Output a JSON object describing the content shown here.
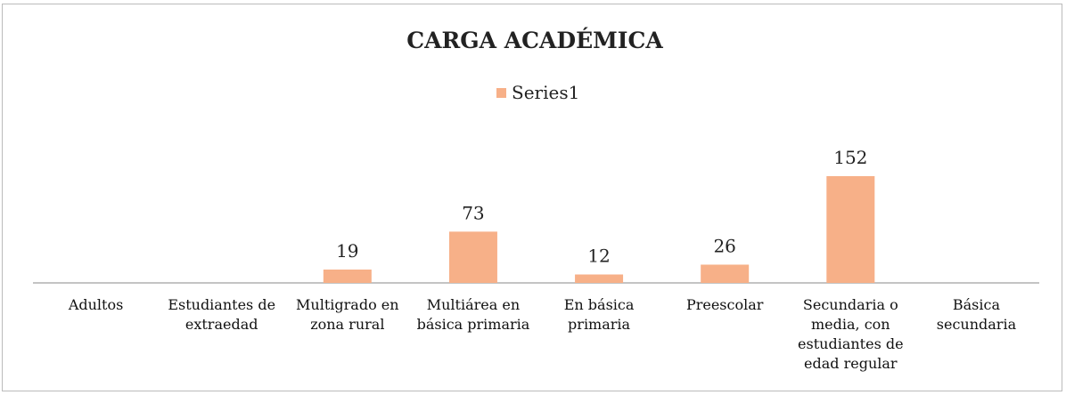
{
  "chart_data": {
    "type": "bar",
    "title": "CARGA ACADÉMICA",
    "categories": [
      "Adultos",
      "Estudiantes de extraedad",
      "Multigrado en zona rural",
      "Multiárea en básica primaria",
      "En básica primaria",
      "Preescolar",
      "Secundaria o media, con estudiantes de edad regular",
      "Básica secundaria"
    ],
    "series": [
      {
        "name": "Series1",
        "color": "#f7b088",
        "values": [
          null,
          null,
          19,
          73,
          12,
          26,
          152,
          null
        ]
      }
    ],
    "legend": "top"
  }
}
